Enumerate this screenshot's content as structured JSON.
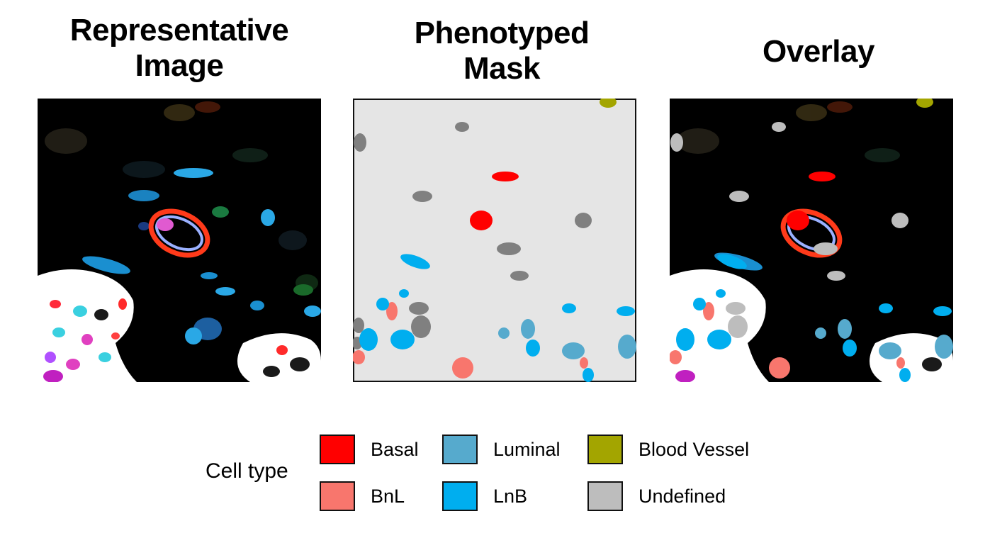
{
  "panels": {
    "representative": {
      "title_line1": "Representative",
      "title_line2": "Image"
    },
    "mask": {
      "title_line1": "Phenotyped",
      "title_line2": "Mask"
    },
    "overlay": {
      "title": "Overlay"
    }
  },
  "legend": {
    "title": "Cell type",
    "items": [
      {
        "label": "Basal",
        "color": "#ff0000"
      },
      {
        "label": "BnL",
        "color": "#f8766d"
      },
      {
        "label": "Luminal",
        "color": "#56aacd"
      },
      {
        "label": "LnB",
        "color": "#00aeef"
      },
      {
        "label": "Blood Vessel",
        "color": "#a3a500"
      },
      {
        "label": "Undefined",
        "color": "#bdbdbd"
      }
    ]
  },
  "colors": {
    "mask_background": "#e5e5e5",
    "undefined_in_mask": "#808080",
    "image_background": "#000000"
  }
}
